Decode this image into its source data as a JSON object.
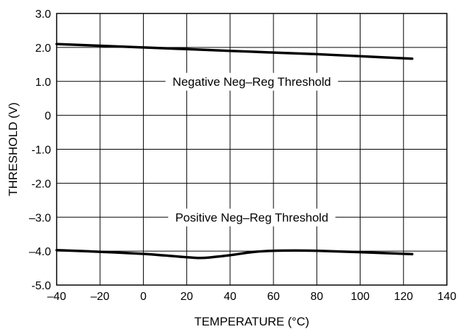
{
  "chart_data": {
    "type": "line",
    "title": "",
    "xlabel": "TEMPERATURE (°C)",
    "ylabel": "THRESHOLD (V)",
    "xlim": [
      -40,
      140
    ],
    "ylim": [
      -5,
      3
    ],
    "x_ticks": [
      -40,
      -20,
      0,
      20,
      40,
      60,
      80,
      100,
      120,
      140
    ],
    "x_tick_labels": [
      "–40",
      "–20",
      "0",
      "20",
      "40",
      "60",
      "80",
      "100",
      "120",
      "140"
    ],
    "y_ticks": [
      3,
      2,
      1,
      0,
      -1,
      -2,
      -3,
      -4,
      -5
    ],
    "y_tick_labels": [
      "3.0",
      "2.0",
      "1.0",
      "0",
      "-1.0",
      "-2.0",
      "–3.0",
      "–4.0",
      "-5.0"
    ],
    "grid": true,
    "legend": "none",
    "series": [
      {
        "name": "Negative Neg–Reg Threshold",
        "x": [
          -40,
          -20,
          0,
          20,
          40,
          60,
          80,
          100,
          124
        ],
        "y": [
          2.1,
          2.05,
          2.0,
          1.95,
          1.9,
          1.85,
          1.8,
          1.74,
          1.67
        ]
      },
      {
        "name": "Positive Neg–Reg Threshold",
        "x": [
          -40,
          -20,
          0,
          10,
          20,
          25,
          30,
          40,
          50,
          60,
          70,
          80,
          100,
          124
        ],
        "y": [
          -3.97,
          -4.02,
          -4.08,
          -4.13,
          -4.18,
          -4.2,
          -4.19,
          -4.12,
          -4.03,
          -3.99,
          -3.98,
          -3.99,
          -4.03,
          -4.09
        ]
      }
    ],
    "colors": {
      "line": "#000000",
      "grid": "#000000",
      "background": "#ffffff"
    }
  }
}
